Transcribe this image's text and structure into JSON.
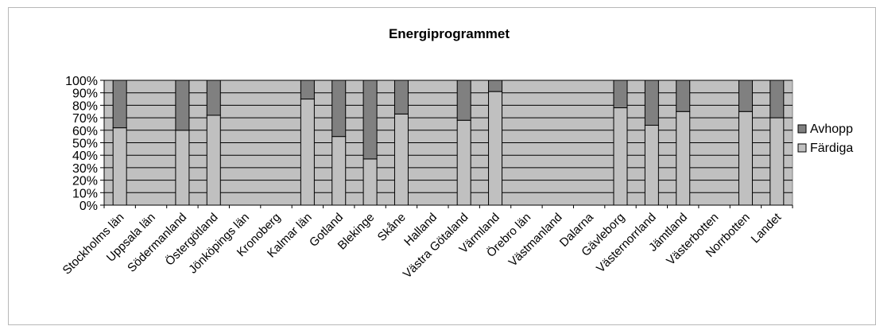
{
  "chart_data": {
    "type": "bar",
    "stacked": "percent",
    "title": "Energiprogrammet",
    "xlabel": "",
    "ylabel": "",
    "ylim": [
      0,
      100
    ],
    "yticks": [
      "0%",
      "10%",
      "20%",
      "30%",
      "40%",
      "50%",
      "60%",
      "70%",
      "80%",
      "90%",
      "100%"
    ],
    "grid": true,
    "legend_position": "right",
    "categories": [
      "Stockholms län",
      "Uppsala län",
      "Södermanland",
      "Östergötland",
      "Jönköpings län",
      "Kronoberg",
      "Kalmar län",
      "Gotland",
      "Blekinge",
      "Skåne",
      "Halland",
      "Västra Götaland",
      "Värmland",
      "Örebro län",
      "Västmanland",
      "Dalarna",
      "Gävleborg",
      "Västernorrland",
      "Jämtland",
      "Västerbotten",
      "Norrbotten",
      "Landet"
    ],
    "series": [
      {
        "name": "Färdiga",
        "color": "#c0c0c0",
        "values": [
          62,
          null,
          60,
          72,
          null,
          null,
          85,
          55,
          37,
          73,
          null,
          68,
          91,
          null,
          null,
          null,
          78,
          64,
          75,
          null,
          75,
          70
        ]
      },
      {
        "name": "Avhopp",
        "color": "#808080",
        "values": [
          38,
          null,
          40,
          28,
          null,
          null,
          15,
          45,
          63,
          27,
          null,
          32,
          9,
          null,
          null,
          null,
          22,
          36,
          25,
          null,
          25,
          30
        ]
      }
    ],
    "legend_order": [
      "Avhopp",
      "Färdiga"
    ],
    "plot_background": "#c0c0c0"
  }
}
